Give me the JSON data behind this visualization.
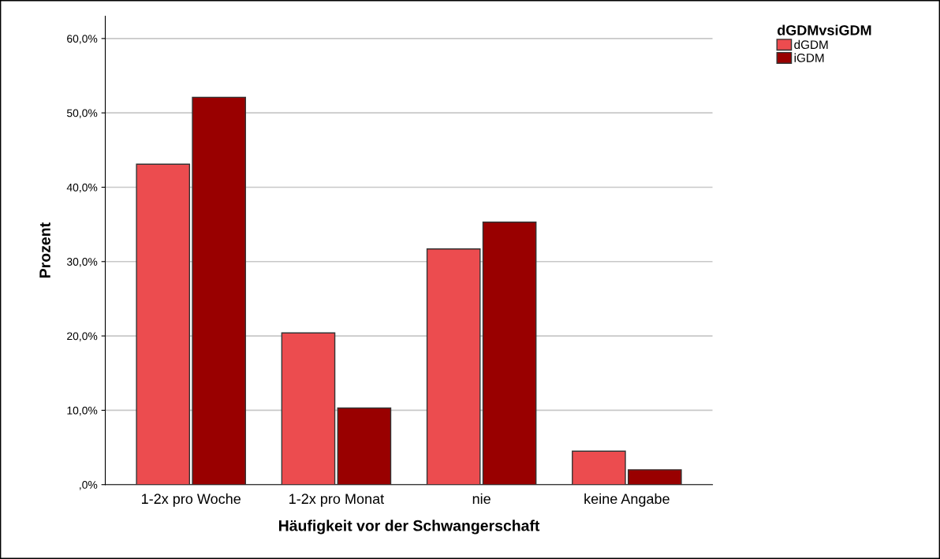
{
  "chart_data": {
    "type": "bar",
    "xlabel": "Häufigkeit vor der Schwangerschaft",
    "ylabel": "Prozent",
    "legend_title": "dGDMvsiGDM",
    "legend": "top right",
    "categories": [
      "1-2x pro Woche",
      "1-2x pro Monat",
      "nie",
      "keine Angabe"
    ],
    "series": [
      {
        "name": "dGDM",
        "color": "#ec4c4f",
        "values": [
          43.1,
          20.4,
          31.7,
          4.5
        ]
      },
      {
        "name": "iGDM",
        "color": "#990000",
        "values": [
          52.1,
          10.3,
          35.3,
          2.0
        ]
      }
    ],
    "ylim": [
      0,
      63
    ],
    "yticks": [
      {
        "value": 0,
        "label": ",0%"
      },
      {
        "value": 10,
        "label": "10,0%"
      },
      {
        "value": 20,
        "label": "20,0%"
      },
      {
        "value": 30,
        "label": "30,0%"
      },
      {
        "value": 40,
        "label": "40,0%"
      },
      {
        "value": 50,
        "label": "50,0%"
      },
      {
        "value": 60,
        "label": "60,0%"
      }
    ],
    "grid": "y"
  }
}
